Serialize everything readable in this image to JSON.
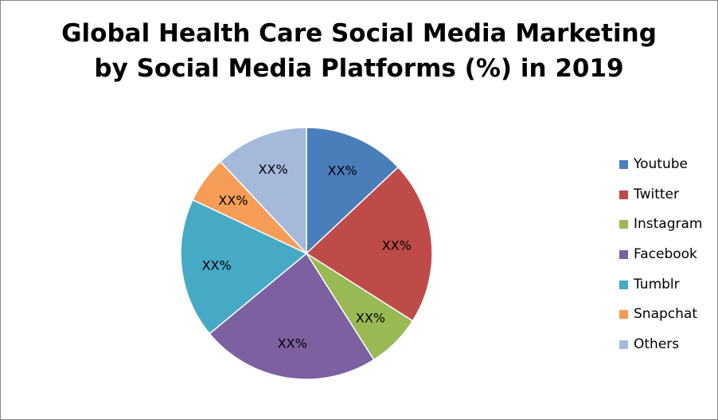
{
  "chart_data": {
    "type": "pie",
    "title_lines": [
      "Global Health Care Social Media Marketing",
      "by Social Media Platforms (%) in 2019"
    ],
    "slices": [
      {
        "name": "Youtube",
        "value": 13,
        "label": "XX%",
        "color": "#4A7EBB"
      },
      {
        "name": "Twitter",
        "value": 21,
        "label": "XX%",
        "color": "#BE4B48"
      },
      {
        "name": "Instagram",
        "value": 7,
        "label": "XX%",
        "color": "#98B954"
      },
      {
        "name": "Facebook",
        "value": 23,
        "label": "XX%",
        "color": "#7D60A0"
      },
      {
        "name": "Tumblr",
        "value": 18,
        "label": "XX%",
        "color": "#46AAC5"
      },
      {
        "name": "Snapchat",
        "value": 6,
        "label": "XX%",
        "color": "#F59D56"
      },
      {
        "name": "Others",
        "value": 12,
        "label": "XX%",
        "color": "#A5B9DA"
      }
    ],
    "legend_position": "right"
  }
}
